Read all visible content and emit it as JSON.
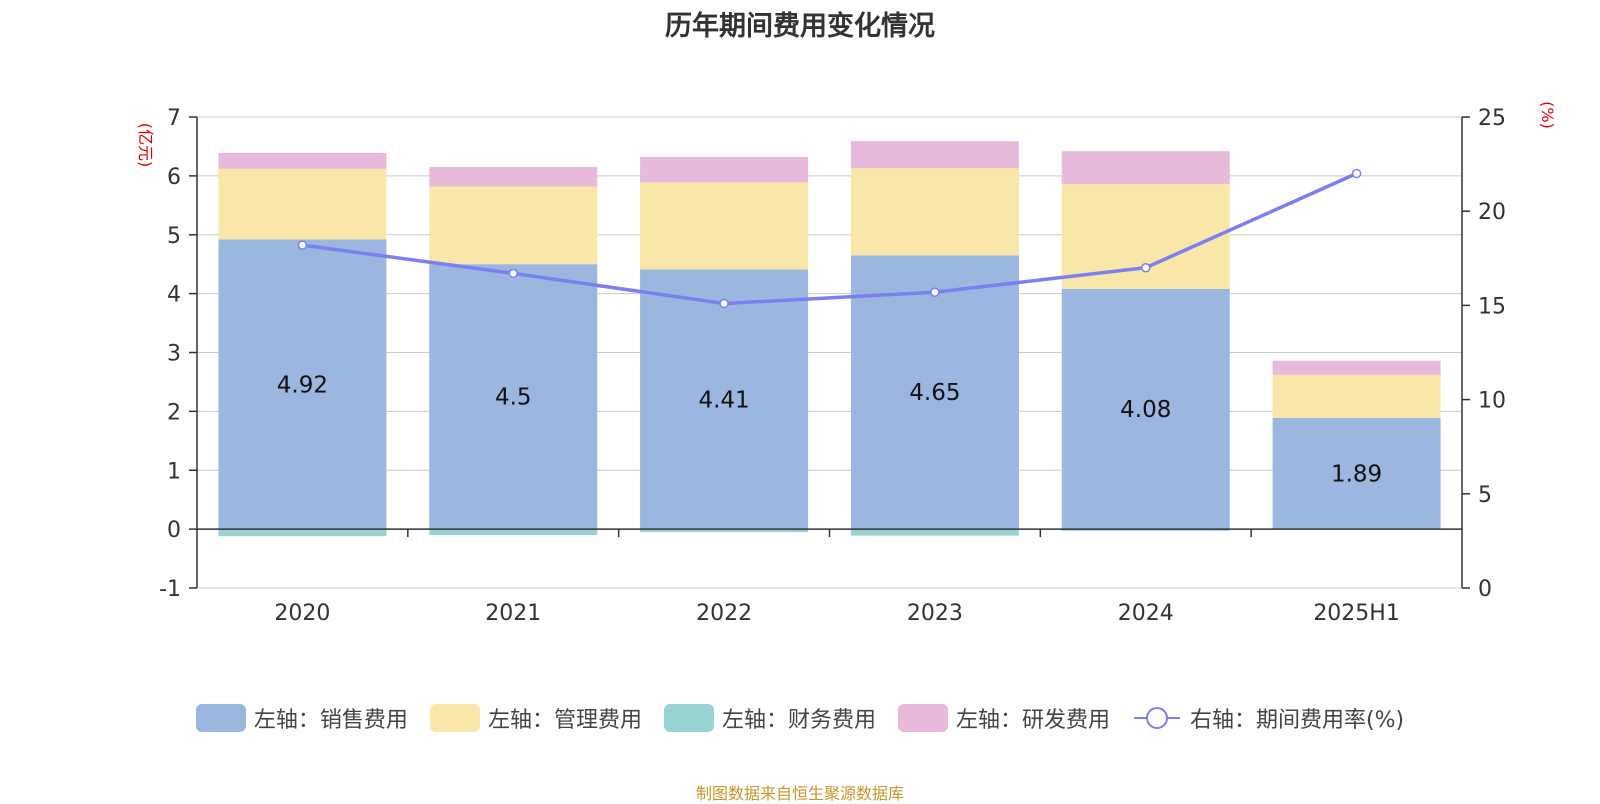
{
  "title": "历年期间费用变化情况",
  "source_note": "制图数据来自恒生聚源数据库",
  "left_unit": "(亿元)",
  "right_unit": "(%)",
  "chart_data": {
    "type": "bar",
    "stacked": true,
    "title": "历年期间费用变化情况",
    "categories": [
      "2020",
      "2021",
      "2022",
      "2023",
      "2024",
      "2025H1"
    ],
    "left_axis": {
      "unit": "(亿元)",
      "ylim": [
        -1,
        7
      ],
      "ticks": [
        "-1",
        "0",
        "1",
        "2",
        "3",
        "4",
        "5",
        "6",
        "7"
      ]
    },
    "right_axis": {
      "unit": "(%)",
      "ylim": [
        0,
        25
      ],
      "ticks": [
        "0",
        "5",
        "10",
        "15",
        "20",
        "25"
      ]
    },
    "series": [
      {
        "name": "左轴：销售费用",
        "axis": "left",
        "type": "bar",
        "color": "#9bb7e0",
        "values": [
          4.92,
          4.5,
          4.41,
          4.65,
          4.08,
          1.89
        ],
        "labels": [
          "4.92",
          "4.5",
          "4.41",
          "4.65",
          "4.08",
          "1.89"
        ]
      },
      {
        "name": "左轴：管理费用",
        "axis": "left",
        "type": "bar",
        "color": "#f8e7a8",
        "values": [
          1.2,
          1.32,
          1.48,
          1.48,
          1.78,
          0.73
        ]
      },
      {
        "name": "左轴：财务费用",
        "axis": "left",
        "type": "bar",
        "color": "#97d3d3",
        "values": [
          -0.12,
          -0.1,
          -0.05,
          -0.11,
          -0.03,
          0.0
        ]
      },
      {
        "name": "左轴：研发费用",
        "axis": "left",
        "type": "bar",
        "color": "#e8b9da",
        "values": [
          0.27,
          0.33,
          0.43,
          0.46,
          0.56,
          0.24
        ]
      },
      {
        "name": "右轴：期间费用率(%)",
        "axis": "right",
        "type": "line",
        "color": "#7b7ff0",
        "values": [
          18.2,
          16.7,
          15.1,
          15.7,
          17.0,
          22.0
        ]
      }
    ],
    "grid": true,
    "legend_position": "bottom"
  }
}
